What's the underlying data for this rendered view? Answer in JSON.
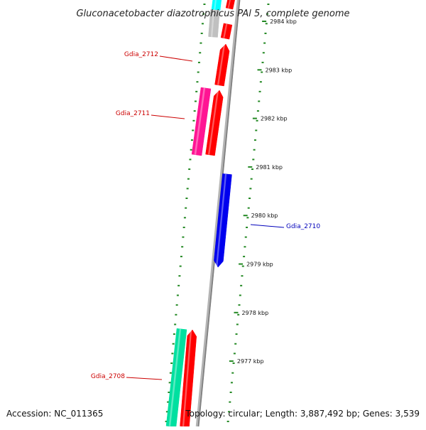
{
  "title": "Gluconacetobacter diazotrophicus PAl 5, complete genome",
  "footer": {
    "accession": "Accession: NC_011365",
    "summary": "Topology: circular; Length: 3,887,492 bp; Genes: 3,539"
  },
  "ticks": [
    {
      "kbp": 2984,
      "label": "2984 kbp"
    },
    {
      "kbp": 2983,
      "label": "2983 kbp"
    },
    {
      "kbp": 2982,
      "label": "2982 kbp"
    },
    {
      "kbp": 2981,
      "label": "2981 kbp"
    },
    {
      "kbp": 2980,
      "label": "2980 kbp"
    },
    {
      "kbp": 2979,
      "label": "2979 kbp"
    },
    {
      "kbp": 2978,
      "label": "2978 kbp"
    },
    {
      "kbp": 2977,
      "label": "2977 kbp"
    }
  ],
  "gene_labels": [
    {
      "name": "Gdia_2712",
      "color": "#cc0000"
    },
    {
      "name": "Gdia_2711",
      "color": "#cc0000"
    },
    {
      "name": "Gdia_2710",
      "color": "#0000bb"
    },
    {
      "name": "Gdia_2708",
      "color": "#cc0000"
    }
  ],
  "colors": {
    "backbone": "#808080",
    "cds_forward": "#ff0000",
    "cds_reverse": "#0000ee",
    "rrna": "#ff1493",
    "trna": "#00e0a0",
    "misc": "#00ffff",
    "other": "#c0c0c0",
    "tick_mark": "#228822"
  }
}
